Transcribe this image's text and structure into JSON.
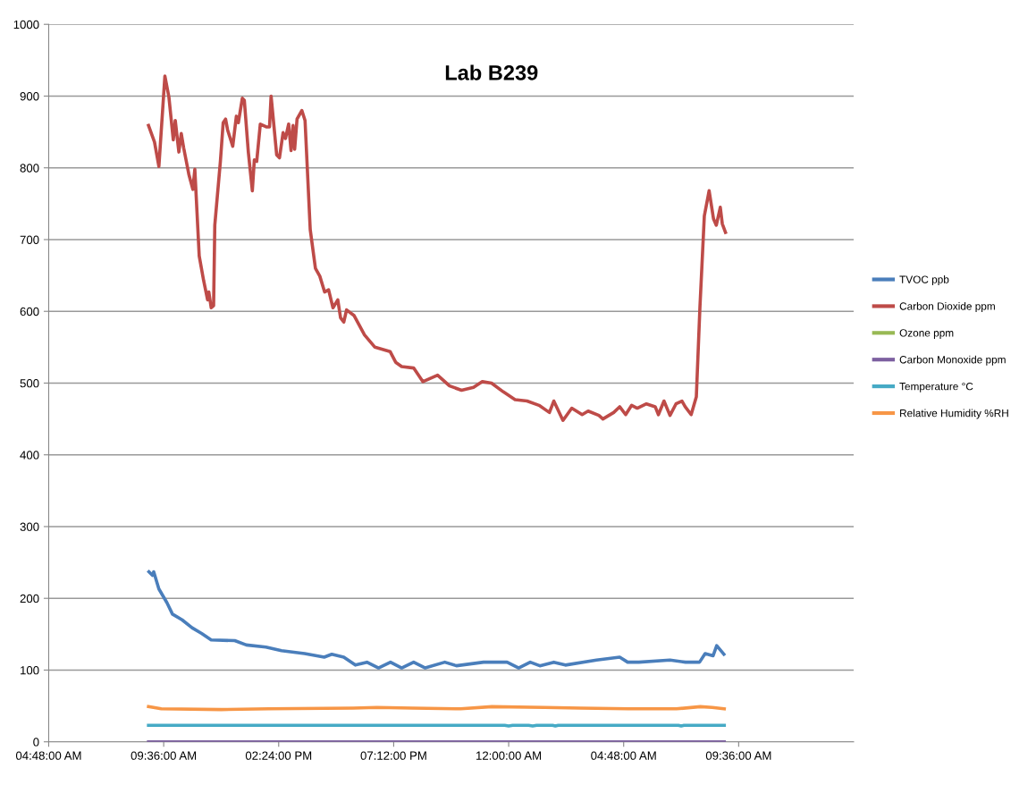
{
  "chart_data": {
    "type": "line",
    "title": "Lab B239",
    "grid": "y",
    "legend": "right",
    "marker": "none",
    "line_style": "solid",
    "xlim": [
      "2000-01-01T04:48",
      "2000-01-02T14:24"
    ],
    "ylim": [
      0,
      1000
    ],
    "xticks": [
      {
        "value": "2000-01-01T04:48",
        "label": "04:48:00 AM"
      },
      {
        "value": "2000-01-01T09:36",
        "label": "09:36:00 AM"
      },
      {
        "value": "2000-01-01T14:24",
        "label": "02:24:00 PM"
      },
      {
        "value": "2000-01-01T19:12",
        "label": "07:12:00 PM"
      },
      {
        "value": "2000-01-02T00:00",
        "label": "12:00:00 AM"
      },
      {
        "value": "2000-01-02T04:48",
        "label": "04:48:00 AM"
      },
      {
        "value": "2000-01-02T09:36",
        "label": "09:36:00 AM"
      }
    ],
    "yticks": [
      0,
      100,
      200,
      300,
      400,
      500,
      600,
      700,
      800,
      900,
      1000
    ],
    "series": [
      {
        "name": "TVOC ppb",
        "color": "#4a7ebb",
        "x": [
          "2000-01-01T08:59",
          "2000-01-01T09:08",
          "2000-01-01T09:11",
          "2000-01-01T09:24",
          "2000-01-01T09:44",
          "2000-01-01T09:58",
          "2000-01-01T10:22",
          "2000-01-01T10:47",
          "2000-01-01T11:11",
          "2000-01-01T11:35",
          "2000-01-01T12:34",
          "2000-01-01T13:03",
          "2000-01-01T13:52",
          "2000-01-01T14:31",
          "2000-01-01T15:29",
          "2000-01-01T16:18",
          "2000-01-01T16:37",
          "2000-01-01T17:07",
          "2000-01-01T17:36",
          "2000-01-01T18:05",
          "2000-01-01T18:34",
          "2000-01-01T19:04",
          "2000-01-01T19:32",
          "2000-01-01T20:02",
          "2000-01-01T20:31",
          "2000-01-01T21:20",
          "2000-01-01T21:49",
          "2000-01-01T22:57",
          "2000-01-01T23:56",
          "2000-01-02T00:25",
          "2000-01-02T00:54",
          "2000-01-02T01:18",
          "2000-01-02T01:53",
          "2000-01-02T02:22",
          "2000-01-02T03:40",
          "2000-01-02T04:38",
          "2000-01-02T04:58",
          "2000-01-02T05:26",
          "2000-01-02T06:44",
          "2000-01-02T07:23",
          "2000-01-02T07:58",
          "2000-01-02T08:12",
          "2000-01-02T08:32",
          "2000-01-02T08:41",
          "2000-01-02T08:59"
        ],
        "values": [
          237,
          232,
          237,
          213,
          194,
          178,
          170,
          159,
          151,
          142,
          141,
          135,
          132,
          127,
          123,
          118,
          122,
          118,
          107,
          111,
          103,
          111,
          103,
          111,
          103,
          111,
          106,
          111,
          111,
          103,
          111,
          106,
          111,
          107,
          114,
          118,
          111,
          111,
          114,
          111,
          111,
          123,
          120,
          134,
          122
        ]
      },
      {
        "name": "Carbon Dioxide ppm",
        "color": "#be4b48",
        "x": [
          "2000-01-01T08:58",
          "2000-01-01T09:13",
          "2000-01-01T09:24",
          "2000-01-01T09:39",
          "2000-01-01T09:49",
          "2000-01-01T10:00",
          "2000-01-01T10:05",
          "2000-01-01T10:14",
          "2000-01-01T10:20",
          "2000-01-01T10:26",
          "2000-01-01T10:39",
          "2000-01-01T10:49",
          "2000-01-01T10:54",
          "2000-01-01T11:05",
          "2000-01-01T11:16",
          "2000-01-01T11:26",
          "2000-01-01T11:29",
          "2000-01-01T11:35",
          "2000-01-01T11:41",
          "2000-01-01T11:44",
          "2000-01-01T11:58",
          "2000-01-01T12:05",
          "2000-01-01T12:11",
          "2000-01-01T12:16",
          "2000-01-01T12:29",
          "2000-01-01T12:38",
          "2000-01-01T12:43",
          "2000-01-01T12:53",
          "2000-01-01T12:58",
          "2000-01-01T13:08",
          "2000-01-01T13:18",
          "2000-01-01T13:23",
          "2000-01-01T13:29",
          "2000-01-01T13:38",
          "2000-01-01T13:53",
          "2000-01-01T14:01",
          "2000-01-01T14:05",
          "2000-01-01T14:19",
          "2000-01-01T14:26",
          "2000-01-01T14:35",
          "2000-01-01T14:41",
          "2000-01-01T14:49",
          "2000-01-01T14:55",
          "2000-01-01T15:00",
          "2000-01-01T15:04",
          "2000-01-01T15:10",
          "2000-01-01T15:22",
          "2000-01-01T15:30",
          "2000-01-01T15:43",
          "2000-01-01T15:56",
          "2000-01-01T16:07",
          "2000-01-01T16:19",
          "2000-01-01T16:29",
          "2000-01-01T16:40",
          "2000-01-01T16:52",
          "2000-01-01T16:59",
          "2000-01-01T17:07",
          "2000-01-01T17:14",
          "2000-01-01T17:33",
          "2000-01-01T17:59",
          "2000-01-01T18:25",
          "2000-01-01T19:03",
          "2000-01-01T19:17",
          "2000-01-01T19:32",
          "2000-01-01T20:02",
          "2000-01-01T20:25",
          "2000-01-01T21:02",
          "2000-01-01T21:32",
          "2000-01-01T22:02",
          "2000-01-01T22:32",
          "2000-01-01T22:54",
          "2000-01-01T23:17",
          "2000-01-01T23:46",
          "2000-01-02T00:16",
          "2000-01-02T00:46",
          "2000-01-02T01:16",
          "2000-01-02T01:42",
          "2000-01-02T01:53",
          "2000-01-02T02:16",
          "2000-01-02T02:38",
          "2000-01-02T03:04",
          "2000-01-02T03:19",
          "2000-01-02T03:46",
          "2000-01-02T03:56",
          "2000-01-02T04:23",
          "2000-01-02T04:38",
          "2000-01-02T04:53",
          "2000-01-02T05:08",
          "2000-01-02T05:22",
          "2000-01-02T05:45",
          "2000-01-02T06:07",
          "2000-01-02T06:15",
          "2000-01-02T06:29",
          "2000-01-02T06:44",
          "2000-01-02T06:59",
          "2000-01-02T07:14",
          "2000-01-02T07:22",
          "2000-01-02T07:37",
          "2000-01-02T07:50",
          "2000-01-02T07:59",
          "2000-01-02T08:10",
          "2000-01-02T08:22",
          "2000-01-02T08:33",
          "2000-01-02T08:40",
          "2000-01-02T08:50",
          "2000-01-02T08:55",
          "2000-01-02T09:03"
        ],
        "values": [
          859,
          836,
          802,
          928,
          899,
          839,
          866,
          822,
          848,
          828,
          791,
          770,
          798,
          677,
          643,
          616,
          627,
          605,
          608,
          720,
          809,
          863,
          868,
          853,
          830,
          872,
          863,
          897,
          894,
          822,
          768,
          811,
          809,
          861,
          857,
          857,
          900,
          818,
          814,
          849,
          841,
          861,
          824,
          859,
          826,
          868,
          880,
          866,
          714,
          660,
          649,
          627,
          630,
          605,
          616,
          591,
          585,
          602,
          594,
          567,
          550,
          544,
          529,
          523,
          521,
          502,
          511,
          496,
          490,
          494,
          502,
          500,
          488,
          477,
          475,
          469,
          459,
          475,
          448,
          465,
          456,
          461,
          455,
          450,
          459,
          467,
          456,
          469,
          465,
          471,
          467,
          456,
          475,
          455,
          471,
          475,
          467,
          456,
          481,
          606,
          733,
          768,
          729,
          720,
          745,
          722,
          710
        ]
      },
      {
        "name": "Ozone ppm",
        "color": "#98b954"
      },
      {
        "name": "Carbon Monoxide ppm",
        "color": "#7d60a0",
        "x": [
          "2000-01-01T08:58",
          "2000-01-02T09:00"
        ],
        "values": [
          0,
          0
        ]
      },
      {
        "name": "Temperature °C",
        "color": "#46aac5",
        "x": [
          "2000-01-01T08:58",
          "2000-01-01T23:50",
          "2000-01-02T00:00",
          "2000-01-02T00:10",
          "2000-01-02T00:50",
          "2000-01-02T01:00",
          "2000-01-02T01:10",
          "2000-01-02T01:50",
          "2000-01-02T01:57",
          "2000-01-02T02:04",
          "2000-01-02T07:05",
          "2000-01-02T07:12",
          "2000-01-02T07:19",
          "2000-01-02T09:00"
        ],
        "values": [
          23,
          23,
          22,
          23,
          23,
          22,
          23,
          23,
          22,
          23,
          23,
          22,
          23,
          23
        ]
      },
      {
        "name": "Relative Humidity %RH",
        "color": "#f79646",
        "x": [
          "2000-01-01T08:58",
          "2000-01-01T09:30",
          "2000-01-01T12:00",
          "2000-01-01T14:00",
          "2000-01-01T17:30",
          "2000-01-01T18:30",
          "2000-01-01T20:00",
          "2000-01-01T22:00",
          "2000-01-01T23:18",
          "2000-01-02T01:30",
          "2000-01-02T03:00",
          "2000-01-02T05:00",
          "2000-01-02T07:00",
          "2000-01-02T08:00",
          "2000-01-02T08:30",
          "2000-01-02T09:00"
        ],
        "values": [
          49,
          46,
          45,
          46,
          47,
          48,
          47,
          46,
          49,
          48,
          47,
          46,
          46,
          49,
          48,
          46
        ]
      }
    ]
  }
}
